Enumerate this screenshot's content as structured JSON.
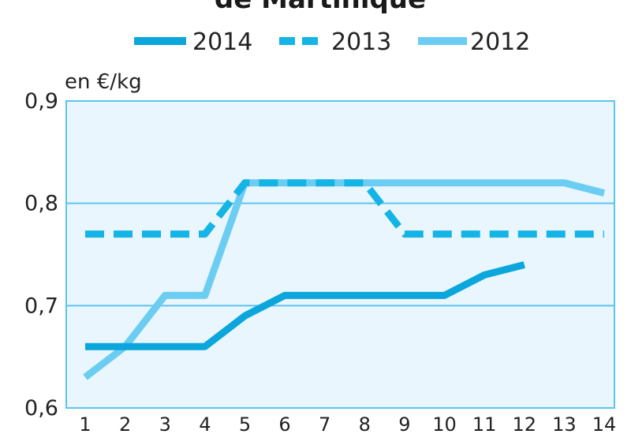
{
  "chart_data": {
    "type": "line",
    "title": "de Martinique",
    "ylabel": "en €/kg",
    "xlabel": "",
    "x": [
      1,
      2,
      3,
      4,
      5,
      6,
      7,
      8,
      9,
      10,
      11,
      12,
      13,
      14
    ],
    "x_tick_labels": [
      "1",
      "2",
      "3",
      "4",
      "5",
      "6",
      "7",
      "8",
      "9",
      "10",
      "11",
      "12",
      "13",
      "14"
    ],
    "y_tick_labels": [
      "0,9",
      "0,8",
      "0,7",
      "0,6"
    ],
    "y_ticks": [
      0.9,
      0.8,
      0.7,
      0.6
    ],
    "xlim": [
      1,
      14
    ],
    "ylim": [
      0.6,
      0.9
    ],
    "grid": true,
    "legend_position": "top",
    "series": [
      {
        "name": "2014",
        "style": "solid",
        "color": "#0aa6dc",
        "values": [
          0.66,
          0.66,
          0.66,
          0.66,
          0.69,
          0.71,
          0.71,
          0.71,
          0.71,
          0.71,
          0.73,
          0.74,
          null,
          null
        ]
      },
      {
        "name": "2013",
        "style": "dashed",
        "color": "#14b4e6",
        "values": [
          0.77,
          0.77,
          0.77,
          0.77,
          0.82,
          0.82,
          0.82,
          0.82,
          0.77,
          0.77,
          0.77,
          0.77,
          0.77,
          0.77
        ]
      },
      {
        "name": "2012",
        "style": "solid",
        "color": "#6ccdf2",
        "values": [
          0.63,
          0.66,
          0.71,
          0.71,
          0.82,
          0.82,
          0.82,
          0.82,
          0.82,
          0.82,
          0.82,
          0.82,
          0.82,
          0.81
        ]
      }
    ],
    "colors": {
      "plot_background": "#eaf6fd",
      "frame": "#5cc4ef",
      "gridline": "#5cc4ef",
      "tick_text": "#222222"
    }
  }
}
